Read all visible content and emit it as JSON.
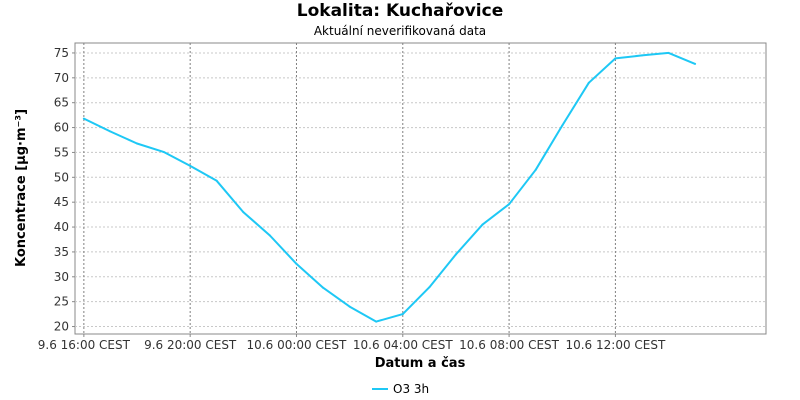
{
  "title": "Lokalita: Kuchařovice",
  "subtitle": "Aktuální neverifikovaná data",
  "chart_data": {
    "type": "line",
    "xlabel": "Datum a čas",
    "ylabel": "Koncentrace [µg·m⁻³]",
    "x_tick_labels": [
      "9.6 16:00 CEST",
      "9.6 20:00 CEST",
      "10.6 00:00 CEST",
      "10.6 04:00 CEST",
      "10.6 08:00 CEST",
      "10.6 12:00 CEST"
    ],
    "xlim": [
      "9.6 15:40 CEST",
      "10.6 17:40 CEST"
    ],
    "ylim": [
      18.5,
      77
    ],
    "y_ticks": [
      20,
      25,
      30,
      35,
      40,
      45,
      50,
      55,
      60,
      65,
      70,
      75
    ],
    "grid": true,
    "legend_position": "bottom-center",
    "series": [
      {
        "name": "O3 3h",
        "color": "#1ec8f5",
        "x": [
          "9.6 16:00 CEST",
          "9.6 17:00 CEST",
          "9.6 18:00 CEST",
          "9.6 19:00 CEST",
          "9.6 20:00 CEST",
          "9.6 21:00 CEST",
          "9.6 22:00 CEST",
          "9.6 23:00 CEST",
          "10.6 00:00 CEST",
          "10.6 01:00 CEST",
          "10.6 02:00 CEST",
          "10.6 03:00 CEST",
          "10.6 04:00 CEST",
          "10.6 05:00 CEST",
          "10.6 06:00 CEST",
          "10.6 07:00 CEST",
          "10.6 08:00 CEST",
          "10.6 09:00 CEST",
          "10.6 10:00 CEST",
          "10.6 11:00 CEST",
          "10.6 12:00 CEST",
          "10.6 13:00 CEST",
          "10.6 14:00 CEST",
          "10.6 15:00 CEST"
        ],
        "values": [
          61.8,
          59.2,
          56.8,
          55.1,
          52.3,
          49.3,
          43.0,
          38.3,
          32.6,
          27.8,
          24.0,
          21.0,
          22.5,
          27.9,
          34.5,
          40.5,
          44.6,
          51.5,
          60.4,
          69.0,
          73.9,
          74.5,
          75.0,
          72.8
        ]
      }
    ]
  }
}
